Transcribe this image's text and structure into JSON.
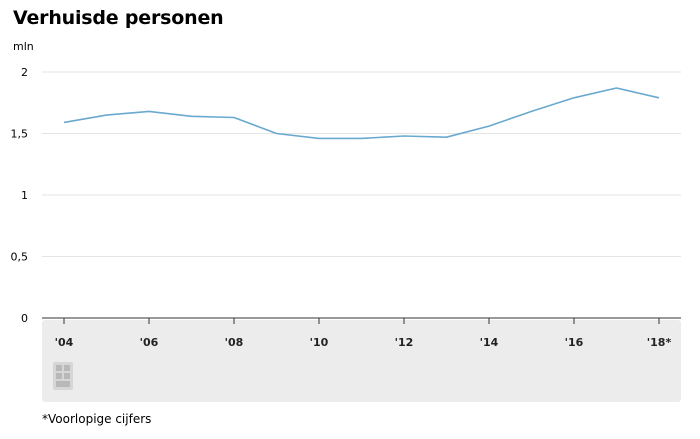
{
  "chart_data": {
    "type": "line",
    "title": "Verhuisde personen",
    "ylabel": "mln",
    "xlabel": "",
    "ylim": [
      0,
      2
    ],
    "yticks": [
      0,
      0.5,
      1,
      1.5,
      2
    ],
    "ytick_labels": [
      "0",
      "0,5",
      "1",
      "1,5",
      "2"
    ],
    "x": [
      2004,
      2005,
      2006,
      2007,
      2008,
      2009,
      2010,
      2011,
      2012,
      2013,
      2014,
      2015,
      2016,
      2017,
      2018
    ],
    "xtick_values": [
      2004,
      2006,
      2008,
      2010,
      2012,
      2014,
      2016,
      2018
    ],
    "xtick_labels": [
      "'04",
      "'06",
      "'08",
      "'10",
      "'12",
      "'14",
      "'16",
      "'18*"
    ],
    "series": [
      {
        "values": [
          1.59,
          1.65,
          1.68,
          1.64,
          1.63,
          1.5,
          1.46,
          1.46,
          1.48,
          1.47,
          1.56,
          1.68,
          1.79,
          1.87,
          1.79
        ],
        "color": "#6aa9cf"
      }
    ],
    "grid": true,
    "footnote": "*Voorlopige cijfers",
    "logo": "cbs-logo-icon"
  }
}
